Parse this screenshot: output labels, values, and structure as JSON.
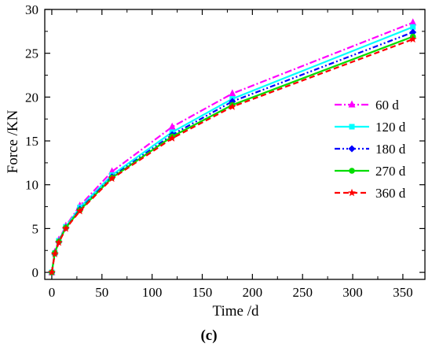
{
  "chart_data": {
    "type": "line",
    "xlabel": "Time /d",
    "ylabel": "Force /KN",
    "caption": "(c)",
    "xlim": [
      -7,
      372
    ],
    "ylim": [
      -0.8,
      30
    ],
    "xticks": [
      0,
      50,
      100,
      150,
      200,
      250,
      300,
      350
    ],
    "yticks": [
      0,
      5,
      10,
      15,
      20,
      25,
      30
    ],
    "grid": false,
    "legend_position": "right",
    "x": [
      0,
      3,
      7,
      14,
      28,
      60,
      120,
      180,
      360
    ],
    "series": [
      {
        "name": "60 d",
        "color": "#ff00ff",
        "dash": "dashdot",
        "marker": "triangle",
        "values": [
          0,
          2.3,
          3.7,
          5.3,
          7.6,
          11.5,
          16.6,
          20.4,
          28.5
        ]
      },
      {
        "name": "120 d",
        "color": "#00ffff",
        "dash": "solid",
        "marker": "square",
        "values": [
          0,
          2.2,
          3.6,
          5.2,
          7.4,
          11.1,
          16.0,
          19.8,
          28.0
        ]
      },
      {
        "name": "180 d",
        "color": "#0000ff",
        "dash": "dashdotdot",
        "marker": "diamond",
        "values": [
          0,
          2.2,
          3.5,
          5.1,
          7.2,
          10.9,
          15.7,
          19.5,
          27.4
        ]
      },
      {
        "name": "270 d",
        "color": "#00dd00",
        "dash": "solid",
        "marker": "circle",
        "values": [
          0,
          2.2,
          3.5,
          5.1,
          7.1,
          10.8,
          15.5,
          19.1,
          26.9
        ]
      },
      {
        "name": "360 d",
        "color": "#ff0000",
        "dash": "dashed",
        "marker": "star",
        "values": [
          0,
          2.1,
          3.4,
          5.0,
          7.0,
          10.7,
          15.3,
          18.9,
          26.6
        ]
      }
    ]
  }
}
